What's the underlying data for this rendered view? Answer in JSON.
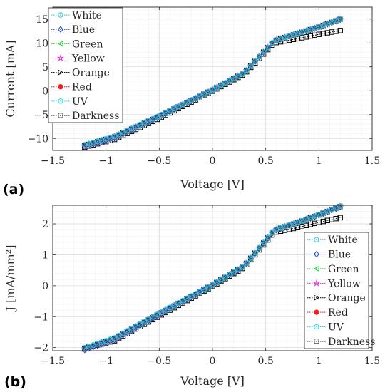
{
  "chart_data": [
    {
      "type": "line",
      "panel_label": "(a)",
      "xlabel": "Voltage [V]",
      "ylabel": "Current [mA]",
      "xlim": [
        -1.5,
        1.5
      ],
      "ylim": [
        -12.5,
        17.5
      ],
      "xticks": [
        -1.5,
        -1,
        -0.5,
        0,
        0.5,
        1,
        1.5
      ],
      "xtick_labels": [
        "−1.5",
        "−1",
        "−0.5",
        "0",
        "0.5",
        "1",
        "1.5"
      ],
      "yticks": [
        -10,
        -5,
        0,
        5,
        10,
        15
      ],
      "ytick_labels": [
        "−10",
        "−5",
        "0",
        "5",
        "10",
        "15"
      ],
      "grid": true,
      "legend_position": "top-left",
      "series": [
        {
          "name": "White",
          "color": "#2ec4d6",
          "marker": "circle",
          "x": [
            -1.2,
            -0.92,
            -0.5,
            0,
            0.3,
            0.58,
            0.8,
            1.0,
            1.2
          ],
          "y": [
            -11.4,
            -9.6,
            -5.3,
            0.2,
            3.8,
            10.5,
            12.0,
            13.4,
            15.0
          ]
        },
        {
          "name": "Blue",
          "color": "#1f3fd6",
          "marker": "diamond",
          "x": [
            -1.2,
            -0.92,
            -0.5,
            0,
            0.3,
            0.58,
            0.8,
            1.0,
            1.2
          ],
          "y": [
            -11.7,
            -9.9,
            -5.5,
            0.1,
            3.7,
            10.4,
            11.9,
            13.3,
            14.9
          ]
        },
        {
          "name": "Green",
          "color": "#1ecb38",
          "marker": "triangle-left",
          "x": [
            -1.2,
            -0.92,
            -0.5,
            0,
            0.3,
            0.58,
            0.8,
            1.0,
            1.2
          ],
          "y": [
            -11.5,
            -9.7,
            -5.4,
            0.15,
            3.75,
            10.45,
            11.95,
            13.35,
            14.95
          ]
        },
        {
          "name": "Yellow",
          "color": "#e02fd6",
          "marker": "star",
          "x": [
            -1.2,
            -0.92,
            -0.5,
            0,
            0.3,
            0.58,
            0.8,
            1.0,
            1.2
          ],
          "y": [
            -11.5,
            -9.7,
            -5.4,
            0.15,
            3.75,
            10.45,
            11.95,
            13.35,
            14.95
          ]
        },
        {
          "name": "Orange",
          "color": "#000000",
          "marker": "triangle-right",
          "x": [
            -1.2,
            -0.92,
            -0.5,
            0,
            0.3,
            0.58,
            0.8,
            1.0,
            1.2
          ],
          "y": [
            -11.5,
            -9.7,
            -5.4,
            0.15,
            3.75,
            10.45,
            11.95,
            13.35,
            14.95
          ]
        },
        {
          "name": "Red",
          "color": "#ef2020",
          "marker": "circle-filled",
          "x": [
            -1.2,
            -0.92,
            -0.5,
            0,
            0.3,
            0.58,
            0.8,
            1.0,
            1.2
          ],
          "y": [
            -11.5,
            -9.7,
            -5.4,
            0.15,
            3.75,
            10.45,
            11.95,
            13.35,
            14.95
          ]
        },
        {
          "name": "UV",
          "color": "#19e0e0",
          "marker": "circle",
          "x": [
            -1.2,
            -0.92,
            -0.5,
            0,
            0.3,
            0.58,
            0.8,
            1.0,
            1.2
          ],
          "y": [
            -11.3,
            -9.5,
            -5.2,
            0.25,
            3.85,
            10.55,
            12.05,
            13.45,
            15.05
          ]
        },
        {
          "name": "Darkness",
          "color": "#000000",
          "marker": "square",
          "x": [
            -1.2,
            -0.92,
            -0.5,
            0,
            0.3,
            0.58,
            0.8,
            1.0,
            1.2
          ],
          "y": [
            -11.8,
            -10.2,
            -5.8,
            -0.1,
            3.5,
            10.0,
            10.9,
            11.8,
            12.6
          ]
        }
      ]
    },
    {
      "type": "line",
      "panel_label": "(b)",
      "xlabel": "Voltage [V]",
      "ylabel": "J [mA/mm²]",
      "xlim": [
        -1.5,
        1.5
      ],
      "ylim": [
        -2.1,
        2.6
      ],
      "xticks": [
        -1.5,
        -1,
        -0.5,
        0,
        0.5,
        1,
        1.5
      ],
      "xtick_labels": [
        "−1.5",
        "−1",
        "−0.5",
        "0",
        "0.5",
        "1",
        "1.5"
      ],
      "yticks": [
        -2,
        -1,
        0,
        1,
        2
      ],
      "ytick_labels": [
        "−2",
        "−1",
        "0",
        "1",
        "2"
      ],
      "grid": true,
      "legend_position": "bottom-right",
      "series": [
        {
          "name": "White",
          "color": "#2ec4d6",
          "marker": "circle",
          "x": [
            -1.2,
            -0.92,
            -0.5,
            0,
            0.3,
            0.58,
            0.8,
            1.0,
            1.2
          ],
          "y": [
            -2.02,
            -1.7,
            -0.9,
            0.03,
            0.65,
            1.8,
            2.05,
            2.3,
            2.57
          ]
        },
        {
          "name": "Blue",
          "color": "#1f3fd6",
          "marker": "diamond",
          "x": [
            -1.2,
            -0.92,
            -0.5,
            0,
            0.3,
            0.58,
            0.8,
            1.0,
            1.2
          ],
          "y": [
            -2.07,
            -1.75,
            -0.94,
            0.01,
            0.63,
            1.78,
            2.03,
            2.28,
            2.55
          ]
        },
        {
          "name": "Green",
          "color": "#1ecb38",
          "marker": "triangle-left",
          "x": [
            -1.2,
            -0.92,
            -0.5,
            0,
            0.3,
            0.58,
            0.8,
            1.0,
            1.2
          ],
          "y": [
            -2.04,
            -1.72,
            -0.92,
            0.02,
            0.64,
            1.79,
            2.04,
            2.29,
            2.56
          ]
        },
        {
          "name": "Yellow",
          "color": "#e02fd6",
          "marker": "star",
          "x": [
            -1.2,
            -0.92,
            -0.5,
            0,
            0.3,
            0.58,
            0.8,
            1.0,
            1.2
          ],
          "y": [
            -2.04,
            -1.72,
            -0.92,
            0.02,
            0.64,
            1.79,
            2.04,
            2.29,
            2.56
          ]
        },
        {
          "name": "Orange",
          "color": "#000000",
          "marker": "triangle-right",
          "x": [
            -1.2,
            -0.92,
            -0.5,
            0,
            0.3,
            0.58,
            0.8,
            1.0,
            1.2
          ],
          "y": [
            -2.04,
            -1.72,
            -0.92,
            0.02,
            0.64,
            1.79,
            2.04,
            2.29,
            2.56
          ]
        },
        {
          "name": "Red",
          "color": "#ef2020",
          "marker": "circle-filled",
          "x": [
            -1.2,
            -0.92,
            -0.5,
            0,
            0.3,
            0.58,
            0.8,
            1.0,
            1.2
          ],
          "y": [
            -2.04,
            -1.72,
            -0.92,
            0.02,
            0.64,
            1.79,
            2.04,
            2.29,
            2.56
          ]
        },
        {
          "name": "UV",
          "color": "#19e0e0",
          "marker": "circle",
          "x": [
            -1.2,
            -0.92,
            -0.5,
            0,
            0.3,
            0.58,
            0.8,
            1.0,
            1.2
          ],
          "y": [
            -2.0,
            -1.68,
            -0.88,
            0.04,
            0.66,
            1.81,
            2.06,
            2.31,
            2.58
          ]
        },
        {
          "name": "Darkness",
          "color": "#000000",
          "marker": "square",
          "x": [
            -1.2,
            -0.92,
            -0.5,
            0,
            0.3,
            0.58,
            0.8,
            1.0,
            1.2
          ],
          "y": [
            -2.02,
            -1.78,
            -0.98,
            -0.02,
            0.6,
            1.72,
            1.88,
            2.05,
            2.2
          ]
        }
      ]
    }
  ]
}
